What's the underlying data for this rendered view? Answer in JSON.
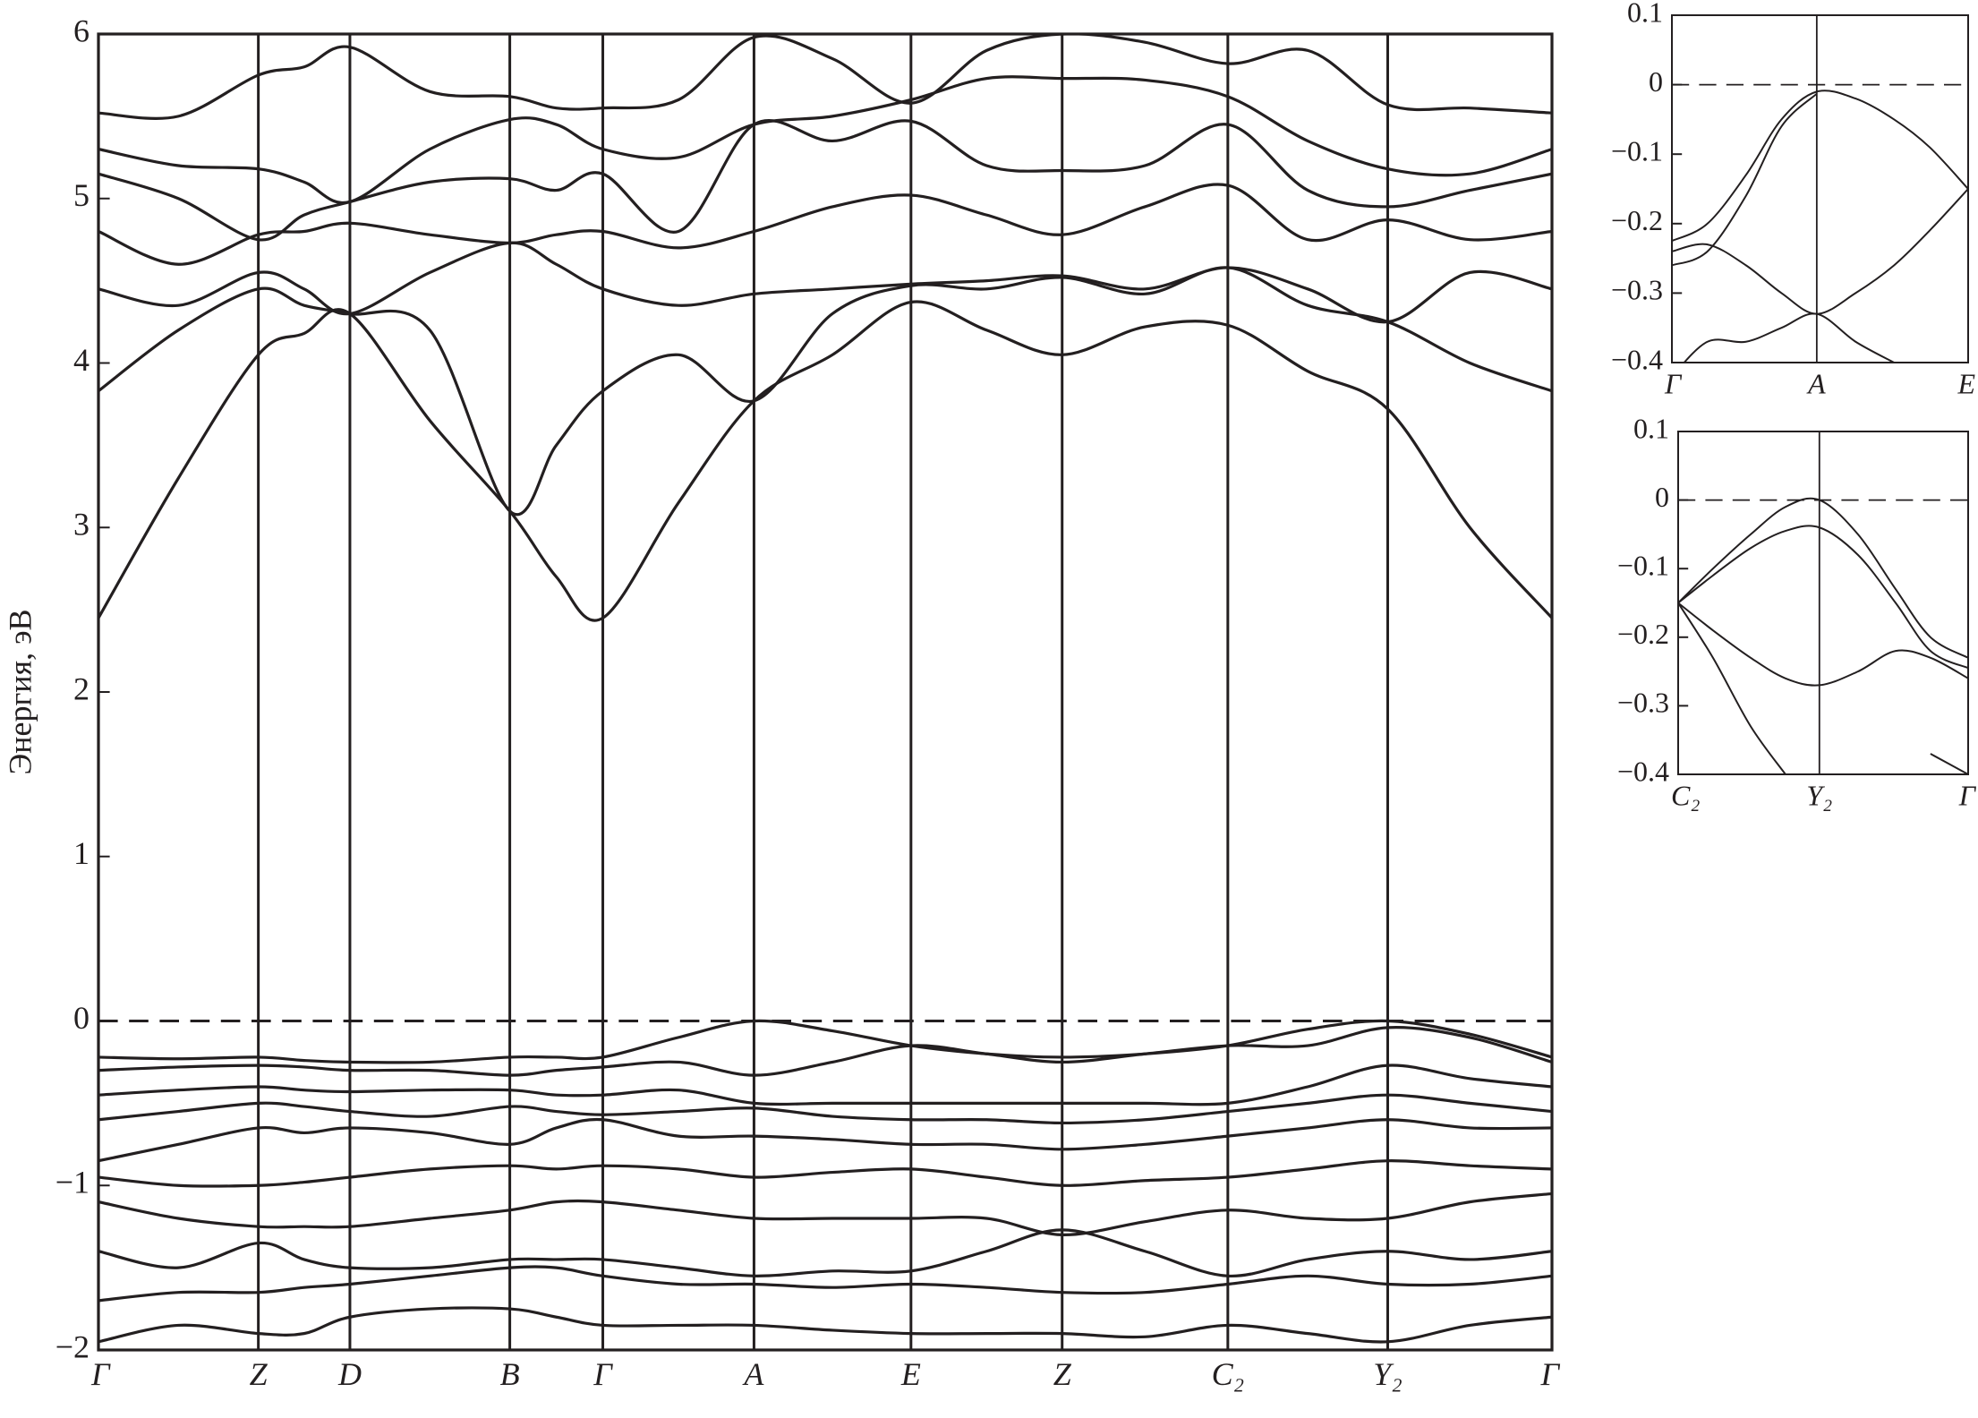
{
  "chart_data": [
    {
      "type": "line",
      "y_label": "Энергия, эВ",
      "color": "#231f20",
      "grid": true,
      "fermi_level": 0,
      "xlim": [
        0,
        1
      ],
      "ylim": [
        -2,
        6
      ],
      "xticks": [
        {
          "value": 0,
          "label": "Γ"
        },
        {
          "value": 0.11,
          "label": "Z"
        },
        {
          "value": 0.173,
          "label": "D"
        },
        {
          "value": 0.283,
          "label": "B"
        },
        {
          "value": 0.347,
          "label": "Γ"
        },
        {
          "value": 0.451,
          "label": "A"
        },
        {
          "value": 0.559,
          "label": "E"
        },
        {
          "value": 0.663,
          "label": "Z"
        },
        {
          "value": 0.777,
          "label": "C₂"
        },
        {
          "value": 0.887,
          "label": "Y₂"
        },
        {
          "value": 1,
          "label": "Γ"
        }
      ],
      "yticks": [
        {
          "value": -2,
          "label": "−2"
        },
        {
          "value": -1,
          "label": "−1"
        },
        0,
        1,
        2,
        3,
        4,
        5,
        6
      ],
      "x": [
        0,
        0.055,
        0.11,
        0.1415,
        0.173,
        0.228,
        0.283,
        0.315,
        0.347,
        0.399,
        0.451,
        0.505,
        0.559,
        0.611,
        0.663,
        0.72,
        0.777,
        0.832,
        0.887,
        0.9435,
        1
      ],
      "series": [
        {
          "values": [
            2.45,
            3.3,
            4.05,
            4.18,
            4.3,
            3.65,
            3.1,
            2.7,
            2.45,
            3.15,
            3.77,
            4.05,
            4.37,
            4.2,
            4.05,
            4.22,
            4.23,
            3.95,
            3.72,
            3.0,
            2.45
          ]
        },
        {
          "values": [
            3.83,
            4.2,
            4.45,
            4.35,
            4.3,
            4.2,
            3.1,
            3.5,
            3.83,
            4.05,
            3.77,
            4.3,
            4.47,
            4.45,
            4.52,
            4.42,
            4.58,
            4.35,
            4.25,
            4.0,
            3.83
          ]
        },
        {
          "values": [
            4.45,
            4.35,
            4.55,
            4.45,
            4.3,
            4.55,
            4.73,
            4.6,
            4.45,
            4.35,
            4.42,
            4.45,
            4.48,
            4.5,
            4.53,
            4.45,
            4.58,
            4.45,
            4.25,
            4.55,
            4.45
          ]
        },
        {
          "values": [
            4.8,
            4.6,
            4.78,
            4.8,
            4.85,
            4.78,
            4.73,
            4.78,
            4.8,
            4.7,
            4.8,
            4.95,
            5.02,
            4.9,
            4.78,
            4.95,
            5.08,
            4.75,
            4.87,
            4.75,
            4.8
          ]
        },
        {
          "values": [
            5.15,
            5.0,
            4.75,
            4.9,
            4.98,
            5.1,
            5.12,
            5.05,
            5.15,
            4.8,
            5.45,
            5.35,
            5.47,
            5.2,
            5.17,
            5.2,
            5.45,
            5.05,
            4.95,
            5.05,
            5.15
          ]
        },
        {
          "values": [
            5.3,
            5.2,
            5.18,
            5.1,
            4.98,
            5.3,
            5.48,
            5.45,
            5.3,
            5.25,
            5.45,
            5.5,
            5.6,
            5.73,
            5.73,
            5.72,
            5.62,
            5.35,
            5.18,
            5.15,
            5.3
          ]
        },
        {
          "values": [
            5.52,
            5.5,
            5.75,
            5.8,
            5.92,
            5.65,
            5.62,
            5.55,
            5.55,
            5.6,
            5.98,
            5.85,
            5.58,
            5.9,
            6.0,
            5.95,
            5.82,
            5.9,
            5.57,
            5.55,
            5.52
          ]
        },
        {
          "values": [
            -0.22,
            -0.23,
            -0.22,
            -0.24,
            -0.25,
            -0.25,
            -0.22,
            -0.22,
            -0.22,
            -0.1,
            0.0,
            -0.06,
            -0.15,
            -0.2,
            -0.22,
            -0.2,
            -0.15,
            -0.05,
            0.0,
            -0.08,
            -0.22
          ]
        },
        {
          "values": [
            -0.3,
            -0.28,
            -0.27,
            -0.28,
            -0.3,
            -0.3,
            -0.33,
            -0.3,
            -0.28,
            -0.25,
            -0.33,
            -0.25,
            -0.15,
            -0.2,
            -0.25,
            -0.2,
            -0.15,
            -0.15,
            -0.04,
            -0.1,
            -0.25
          ]
        },
        {
          "values": [
            -0.45,
            -0.42,
            -0.4,
            -0.42,
            -0.43,
            -0.42,
            -0.42,
            -0.45,
            -0.45,
            -0.42,
            -0.5,
            -0.5,
            -0.5,
            -0.5,
            -0.5,
            -0.5,
            -0.5,
            -0.4,
            -0.27,
            -0.35,
            -0.4
          ]
        },
        {
          "values": [
            -0.6,
            -0.55,
            -0.5,
            -0.52,
            -0.55,
            -0.58,
            -0.52,
            -0.55,
            -0.57,
            -0.55,
            -0.53,
            -0.58,
            -0.6,
            -0.6,
            -0.62,
            -0.6,
            -0.55,
            -0.5,
            -0.45,
            -0.5,
            -0.55
          ]
        },
        {
          "values": [
            -0.85,
            -0.75,
            -0.65,
            -0.68,
            -0.65,
            -0.68,
            -0.75,
            -0.65,
            -0.6,
            -0.7,
            -0.7,
            -0.72,
            -0.75,
            -0.75,
            -0.78,
            -0.75,
            -0.7,
            -0.65,
            -0.6,
            -0.65,
            -0.65
          ]
        },
        {
          "values": [
            -0.95,
            -1.0,
            -1.0,
            -0.98,
            -0.95,
            -0.9,
            -0.88,
            -0.9,
            -0.88,
            -0.9,
            -0.95,
            -0.92,
            -0.9,
            -0.95,
            -1.0,
            -0.97,
            -0.95,
            -0.9,
            -0.85,
            -0.88,
            -0.9
          ]
        },
        {
          "values": [
            -1.1,
            -1.2,
            -1.25,
            -1.25,
            -1.25,
            -1.2,
            -1.15,
            -1.1,
            -1.1,
            -1.15,
            -1.2,
            -1.2,
            -1.2,
            -1.2,
            -1.3,
            -1.22,
            -1.15,
            -1.2,
            -1.2,
            -1.1,
            -1.05
          ]
        },
        {
          "values": [
            -1.4,
            -1.5,
            -1.35,
            -1.45,
            -1.5,
            -1.5,
            -1.45,
            -1.45,
            -1.45,
            -1.5,
            -1.55,
            -1.52,
            -1.52,
            -1.4,
            -1.27,
            -1.4,
            -1.55,
            -1.45,
            -1.4,
            -1.45,
            -1.4
          ]
        },
        {
          "values": [
            -1.7,
            -1.65,
            -1.65,
            -1.62,
            -1.6,
            -1.55,
            -1.5,
            -1.5,
            -1.55,
            -1.6,
            -1.6,
            -1.62,
            -1.6,
            -1.62,
            -1.65,
            -1.65,
            -1.6,
            -1.55,
            -1.6,
            -1.6,
            -1.55
          ]
        },
        {
          "values": [
            -1.95,
            -1.85,
            -1.9,
            -1.9,
            -1.8,
            -1.75,
            -1.75,
            -1.8,
            -1.85,
            -1.85,
            -1.85,
            -1.88,
            -1.9,
            -1.9,
            -1.9,
            -1.92,
            -1.85,
            -1.9,
            -1.95,
            -1.85,
            -1.8
          ]
        }
      ]
    },
    {
      "type": "line",
      "color": "#231f20",
      "grid": true,
      "fermi_level": 0,
      "xlim": [
        0,
        1
      ],
      "ylim": [
        -0.4,
        0.1
      ],
      "xticks": [
        {
          "value": 0,
          "label": "Γ"
        },
        {
          "value": 0.489,
          "label": "A"
        },
        {
          "value": 1,
          "label": "E"
        }
      ],
      "yticks": [
        {
          "value": -0.4,
          "label": "−0.4"
        },
        {
          "value": -0.3,
          "label": "−0.3"
        },
        {
          "value": -0.2,
          "label": "−0.2"
        },
        {
          "value": -0.1,
          "label": "−0.1"
        },
        0,
        0.1
      ],
      "x": [
        0,
        0.12,
        0.25,
        0.37,
        0.489,
        0.62,
        0.75,
        0.87,
        1
      ],
      "series": [
        {
          "values": [
            -0.225,
            -0.2,
            -0.13,
            -0.05,
            -0.01,
            -0.02,
            -0.05,
            -0.09,
            -0.15
          ]
        },
        {
          "values": [
            -0.26,
            -0.24,
            -0.16,
            -0.06,
            -0.013,
            null,
            null,
            null,
            null
          ]
        },
        {
          "values": [
            -0.24,
            -0.23,
            -0.26,
            -0.3,
            -0.33,
            -0.3,
            -0.26,
            -0.21,
            -0.15
          ]
        },
        {
          "values": [
            -0.42,
            -0.37,
            -0.37,
            -0.35,
            -0.33,
            -0.37,
            -0.4,
            null,
            null
          ]
        }
      ]
    },
    {
      "type": "line",
      "color": "#231f20",
      "grid": true,
      "fermi_level": 0,
      "xlim": [
        0,
        1
      ],
      "ylim": [
        -0.4,
        0.1
      ],
      "xticks": [
        {
          "value": 0,
          "label": "C₂"
        },
        {
          "value": 0.487,
          "label": "Y₂"
        },
        {
          "value": 1,
          "label": "Γ"
        }
      ],
      "yticks": [
        {
          "value": -0.4,
          "label": "−0.4"
        },
        {
          "value": -0.3,
          "label": "−0.3"
        },
        {
          "value": -0.2,
          "label": "−0.2"
        },
        {
          "value": -0.1,
          "label": "−0.1"
        },
        0,
        0.1
      ],
      "x": [
        0,
        0.12,
        0.25,
        0.37,
        0.487,
        0.62,
        0.75,
        0.87,
        1
      ],
      "series": [
        {
          "values": [
            -0.15,
            -0.1,
            -0.05,
            -0.01,
            0,
            -0.05,
            -0.13,
            -0.2,
            -0.23
          ]
        },
        {
          "values": [
            -0.15,
            -0.11,
            -0.07,
            -0.045,
            -0.04,
            -0.08,
            -0.15,
            -0.22,
            -0.245
          ]
        },
        {
          "values": [
            -0.15,
            -0.19,
            -0.23,
            -0.26,
            -0.27,
            -0.25,
            -0.22,
            -0.23,
            -0.26
          ]
        },
        {
          "values": [
            -0.15,
            -0.23,
            -0.33,
            -0.4,
            null,
            null,
            null,
            -0.37,
            -0.4
          ]
        }
      ]
    }
  ]
}
